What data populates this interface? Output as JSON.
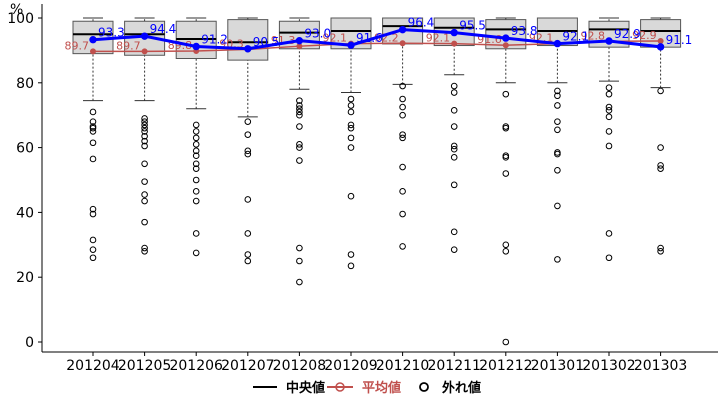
{
  "chart_data": {
    "type": "box",
    "ylabel": "%",
    "ylim": [
      0,
      100
    ],
    "y_ticks": [
      0,
      20,
      40,
      60,
      80,
      100
    ],
    "categories": [
      "201204",
      "201205",
      "201206",
      "201207",
      "201208",
      "201209",
      "201210",
      "201211",
      "201212",
      "201301",
      "201302",
      "201303"
    ],
    "boxes": [
      {
        "min": 74.5,
        "q1": 89.0,
        "median": 95.0,
        "q3": 99.0,
        "max": 100
      },
      {
        "min": 74.5,
        "q1": 88.5,
        "median": 95.0,
        "q3": 99.0,
        "max": 100
      },
      {
        "min": 72.0,
        "q1": 87.5,
        "median": 93.5,
        "q3": 99.0,
        "max": 100
      },
      {
        "min": 69.5,
        "q1": 87.0,
        "median": 92.5,
        "q3": 99.5,
        "max": 100
      },
      {
        "min": 78.0,
        "q1": 90.5,
        "median": 95.5,
        "q3": 99.0,
        "max": 100
      },
      {
        "min": 77.0,
        "q1": 90.5,
        "median": 96.0,
        "q3": 100,
        "max": 100
      },
      {
        "min": 79.5,
        "q1": 92.0,
        "median": 97.5,
        "q3": 100,
        "max": 100
      },
      {
        "min": 82.5,
        "q1": 91.5,
        "median": 97.0,
        "q3": 100,
        "max": 100
      },
      {
        "min": 80.0,
        "q1": 90.5,
        "median": 96.5,
        "q3": 99.5,
        "max": 100
      },
      {
        "min": 80.0,
        "q1": 91.5,
        "median": 96.0,
        "q3": 100,
        "max": 100
      },
      {
        "min": 80.5,
        "q1": 91.0,
        "median": 96.5,
        "q3": 99.0,
        "max": 100
      },
      {
        "min": 78.5,
        "q1": 91.0,
        "median": 96.0,
        "q3": 99.5,
        "max": 100
      }
    ],
    "outliers": [
      [
        71,
        68,
        66.5,
        66,
        65,
        61.5,
        56.5,
        41,
        39.5,
        31.5,
        28.5,
        26
      ],
      [
        69,
        68,
        67,
        66,
        65,
        63.5,
        62,
        60.5,
        55,
        49.5,
        45.5,
        43.5,
        37,
        29,
        28
      ],
      [
        67,
        65,
        63,
        61,
        59,
        57.5,
        55,
        53.5,
        50,
        46.5,
        43.5,
        33.5,
        27.5
      ],
      [
        68,
        64,
        59,
        58,
        44,
        33.5,
        27,
        25
      ],
      [
        74.5,
        73,
        72,
        71,
        70,
        66.5,
        61,
        60,
        56,
        29,
        25,
        18.5
      ],
      [
        75,
        73,
        71,
        67,
        66,
        63,
        60,
        45,
        27,
        23.5
      ],
      [
        79,
        75,
        72.5,
        70,
        64,
        63,
        54,
        46.5,
        39.5,
        29.5
      ],
      [
        79,
        77,
        71.5,
        66.5,
        60.5,
        59.5,
        57,
        48.5,
        34,
        28.5
      ],
      [
        76.5,
        66.5,
        66,
        57.5,
        57,
        52,
        30,
        28,
        0
      ],
      [
        77.5,
        76,
        73,
        68,
        65.5,
        58.5,
        58,
        53,
        42,
        25.5
      ],
      [
        78.5,
        76.5,
        72.5,
        71.5,
        69.5,
        65,
        60.5,
        33.5,
        26
      ],
      [
        77.5,
        60,
        54.5,
        53.5,
        29,
        28
      ]
    ],
    "mean_series": {
      "name": "平均値",
      "values": [
        89.7,
        89.7,
        89.8,
        90.3,
        91.3,
        92.1,
        92.2,
        92.1,
        91.6,
        92.1,
        92.8,
        92.9
      ],
      "labels": [
        "89.7",
        "89.7",
        "89.8",
        "90.3",
        "91.3",
        "92.1",
        "92.2",
        "92.1",
        "91.6",
        "92.1",
        "92.8",
        "92.9"
      ],
      "color": "#c0504d"
    },
    "other_series": {
      "values": [
        93.3,
        94.4,
        91.2,
        90.5,
        93.0,
        91.6,
        96.4,
        95.5,
        93.8,
        92.1,
        92.9,
        91.1
      ],
      "labels": [
        "93.3",
        "94.4",
        "91.2",
        "90.5",
        "93.0",
        "91.6",
        "96.4",
        "95.5",
        "93.8",
        "92.1",
        "92.9",
        "91.1"
      ],
      "color": "#0000ff"
    },
    "legend": {
      "placement": "bottom",
      "items": [
        {
          "label": "中央値",
          "kind": "median"
        },
        {
          "label": "平均値",
          "kind": "mean"
        },
        {
          "label": "外れ値",
          "kind": "outlier"
        }
      ]
    },
    "colors": {
      "box_fill": "#d9d9d9",
      "box_stroke": "#555555",
      "median": "#000000",
      "outlier": "#000000"
    }
  }
}
